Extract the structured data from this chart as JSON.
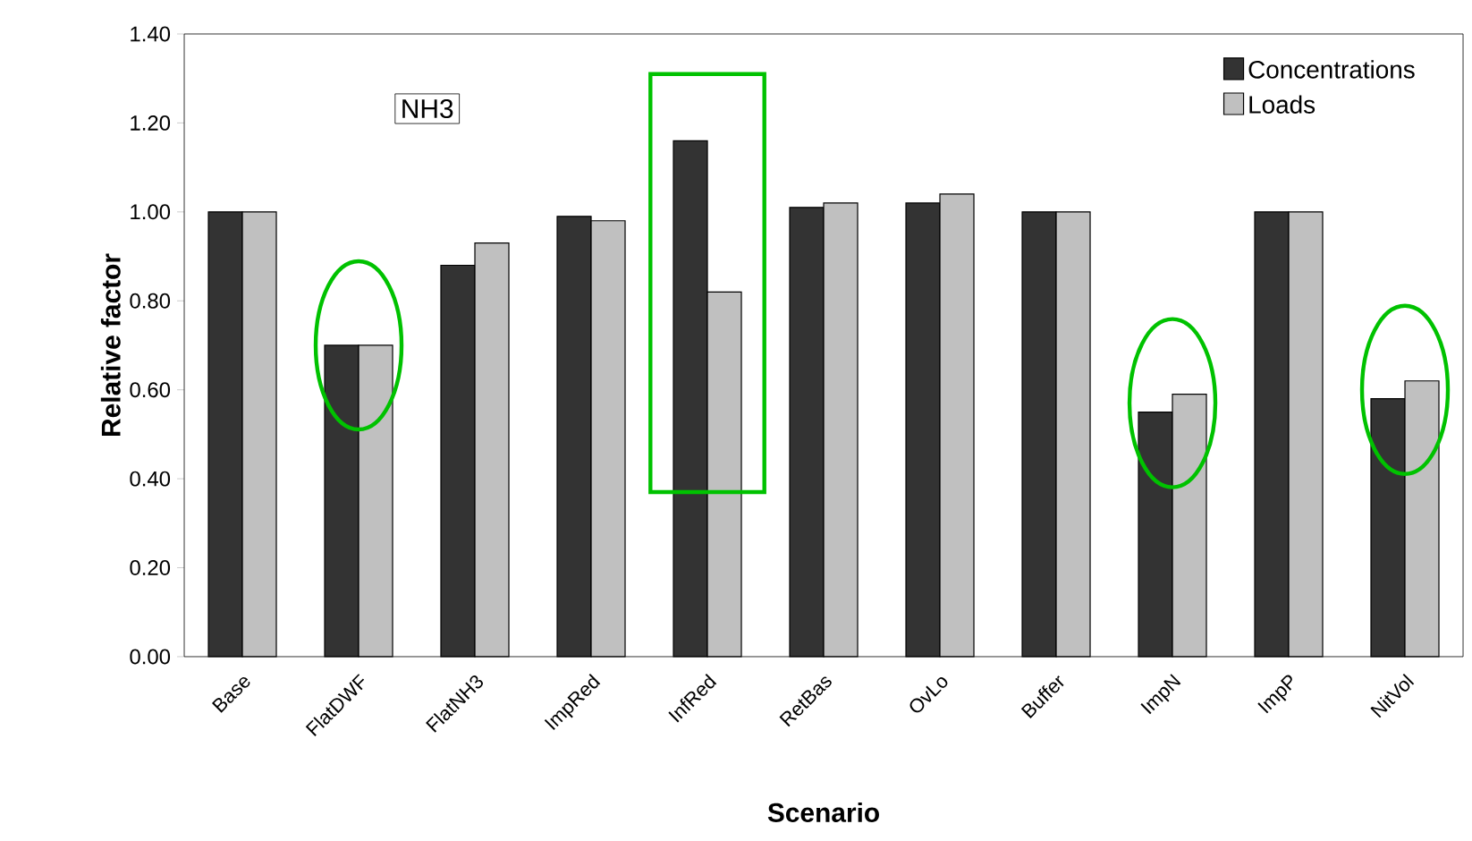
{
  "chart_data": {
    "type": "bar",
    "xlabel": "Scenario",
    "ylabel": "Relative factor",
    "categories": [
      "Base",
      "FlatDWF",
      "FlatNH3",
      "ImpRed",
      "InfRed",
      "RetBas",
      "OvLo",
      "Buffer",
      "ImpN",
      "ImpP",
      "NitVol"
    ],
    "series": [
      {
        "name": "Concentrations",
        "color": "#333333",
        "values": [
          1.0,
          0.7,
          0.88,
          0.99,
          1.16,
          1.01,
          1.02,
          1.0,
          0.55,
          1.0,
          0.58
        ]
      },
      {
        "name": "Loads",
        "color": "#c0c0c0",
        "values": [
          1.0,
          0.7,
          0.93,
          0.98,
          0.82,
          1.02,
          1.04,
          1.0,
          0.59,
          1.0,
          0.62
        ]
      }
    ],
    "ylim": [
      0,
      1.4
    ],
    "yticks": [
      {
        "value": 0,
        "label": "0.00"
      },
      {
        "value": 0.2,
        "label": "0.20"
      },
      {
        "value": 0.4,
        "label": "0.40"
      },
      {
        "value": 0.6,
        "label": "0.60"
      },
      {
        "value": 0.8,
        "label": "0.80"
      },
      {
        "value": 1.0,
        "label": "1.00"
      },
      {
        "value": 1.2,
        "label": "1.20"
      },
      {
        "value": 1.4,
        "label": "1.40"
      }
    ],
    "legend": "top right",
    "annotations": [
      "NH3"
    ]
  }
}
